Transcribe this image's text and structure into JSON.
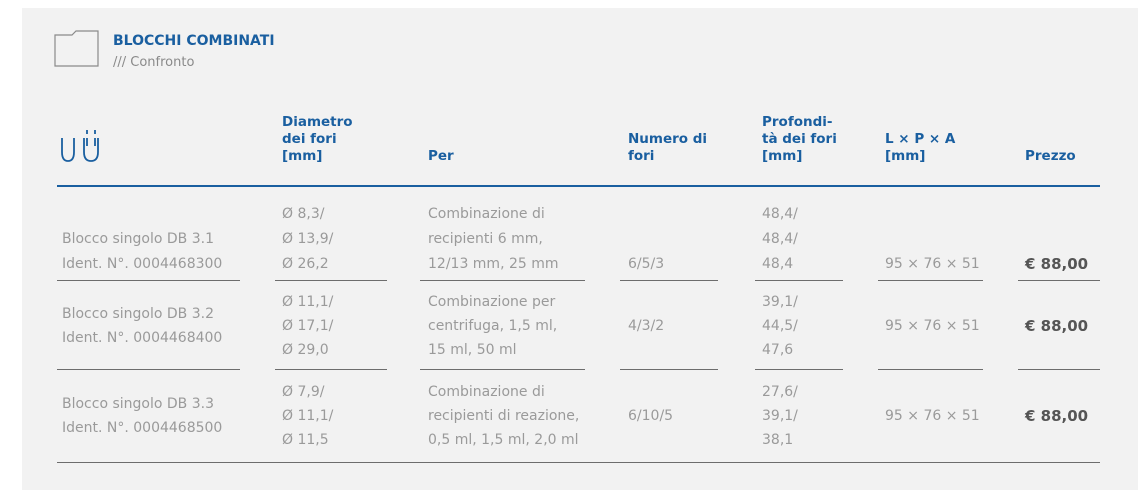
{
  "header": {
    "title": "BLOCCHI COMBINATI",
    "subtitle": "/// Confronto"
  },
  "table": {
    "columns": [
      [],
      [
        "Diametro",
        "dei fori",
        "[mm]"
      ],
      [
        "Per"
      ],
      [
        "Numero di",
        "fori"
      ],
      [
        "Profondi-",
        "tà dei fori",
        "[mm]"
      ],
      [
        "L × P × A",
        "[mm]"
      ],
      [
        "Prezzo"
      ]
    ],
    "rows": [
      [
        [
          "Blocco singolo DB 3.1",
          "Ident. N°. 0004468300"
        ],
        [
          "Ø 8,3/",
          "Ø 13,9/",
          "Ø 26,2"
        ],
        [
          "Combinazione di",
          "recipienti 6 mm,",
          "12/13 mm, 25 mm"
        ],
        [
          "6/5/3"
        ],
        [
          "48,4/",
          "48,4/",
          "48,4"
        ],
        [
          "95 × 76 × 51"
        ],
        [
          "€ 88,00"
        ]
      ],
      [
        [
          "Blocco singolo DB 3.2",
          "Ident. N°. 0004468400"
        ],
        [
          "Ø 11,1/",
          "Ø 17,1/",
          "Ø 29,0"
        ],
        [
          "Combinazione per",
          "centrifuga, 1,5 ml,",
          "15 ml, 50 ml"
        ],
        [
          "4/3/2"
        ],
        [
          "39,1/",
          "44,5/",
          "47,6"
        ],
        [
          "95 × 76 × 51"
        ],
        [
          "€ 88,00"
        ]
      ],
      [
        [
          "Blocco singolo DB 3.3",
          "Ident. N°. 0004468500"
        ],
        [
          "Ø 7,9/",
          "Ø 11,1/",
          "Ø 11,5"
        ],
        [
          "Combinazione di",
          "recipienti di reazione,",
          "0,5 ml, 1,5 ml, 2,0 ml"
        ],
        [
          "6/10/5"
        ],
        [
          "27,6/",
          "39,1/",
          "38,1"
        ],
        [
          "95 × 76 × 51"
        ],
        [
          "€ 88,00"
        ]
      ]
    ]
  }
}
